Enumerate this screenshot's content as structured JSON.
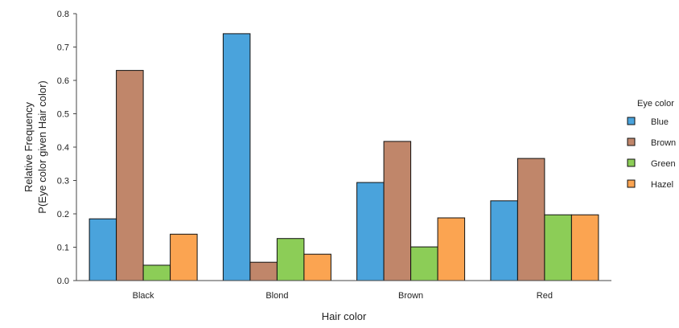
{
  "chart_data": {
    "type": "bar",
    "categories": [
      "Black",
      "Blond",
      "Brown",
      "Red"
    ],
    "series": [
      {
        "name": "Blue",
        "color": "#4aa3dc",
        "values": [
          0.185,
          0.74,
          0.294,
          0.239
        ]
      },
      {
        "name": "Brown",
        "color": "#c0866a",
        "values": [
          0.63,
          0.055,
          0.417,
          0.366
        ]
      },
      {
        "name": "Green",
        "color": "#8ccd57",
        "values": [
          0.046,
          0.126,
          0.101,
          0.197
        ]
      },
      {
        "name": "Hazel",
        "color": "#fba451",
        "values": [
          0.139,
          0.079,
          0.188,
          0.197
        ]
      }
    ],
    "title": "",
    "xlabel": "Hair color",
    "ylabel_lines": [
      "Relative Frequency",
      "P(Eye color given Hair color)"
    ],
    "ylim": [
      0,
      0.8
    ],
    "yticks": [
      "0.0",
      "0.1",
      "0.2",
      "0.3",
      "0.4",
      "0.5",
      "0.6",
      "0.7",
      "0.8"
    ],
    "legend": {
      "title": "Eye color",
      "placement": "right"
    },
    "grid": false
  }
}
